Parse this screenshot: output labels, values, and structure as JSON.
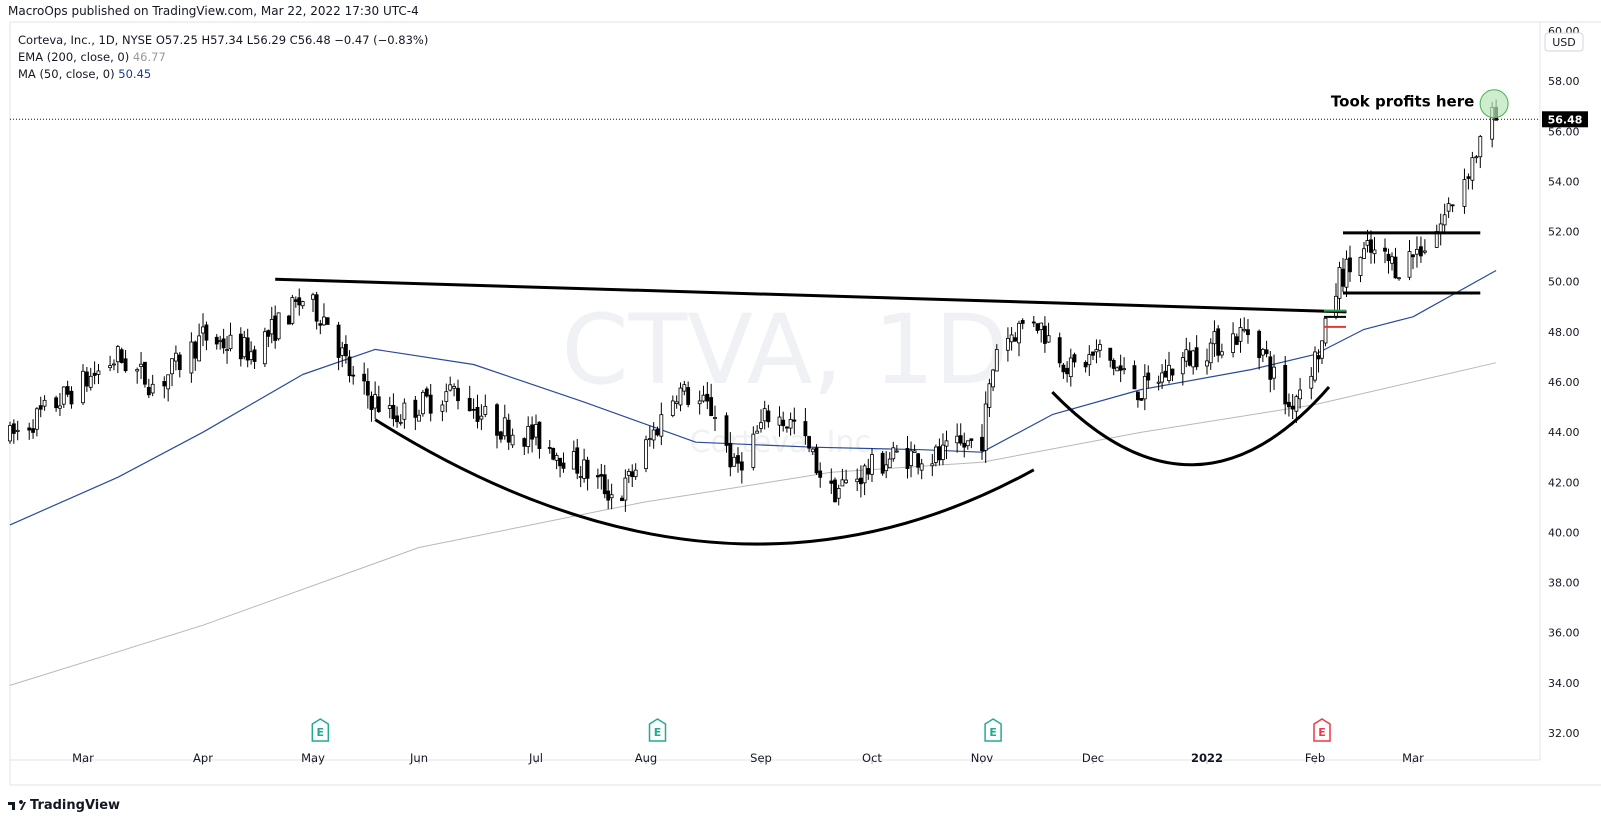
{
  "header": {
    "published": "MacroOps published on TradingView.com, Mar 22, 2022 17:30 UTC-4"
  },
  "legend": {
    "symbol_line": "Corteva, Inc., 1D, NYSE  O57.25  H57.34  L56.29  C56.48  −0.47 (−0.83%)",
    "ema_label": "EMA (200, close, 0)",
    "ema_value": "46.77",
    "ma_label": "MA (50, close, 0)",
    "ma_value": "50.45"
  },
  "watermark": {
    "ticker": "CTVA, 1D",
    "name": "Corteva, Inc."
  },
  "annotation": "Took profits here",
  "currency": "USD",
  "footer": {
    "brand": "TradingView"
  },
  "colors": {
    "up": "#ffffff",
    "down": "#000000",
    "ma50": "#2a4a9a",
    "ema200": "#b8b8b8",
    "earnings": "#22ab94",
    "earnings_next": "#f23645",
    "target_circle": "#b9e6b9"
  },
  "chart_data": {
    "type": "candlestick",
    "title": "Corteva, Inc., 1D, NYSE",
    "ylim": [
      31.5,
      60.2
    ],
    "y_ticks": [
      "32.00",
      "34.00",
      "36.00",
      "38.00",
      "40.00",
      "42.00",
      "44.00",
      "46.00",
      "48.00",
      "50.00",
      "52.00",
      "54.00",
      "56.00",
      "58.00",
      "60.00"
    ],
    "x_ticks": [
      {
        "label": "Mar",
        "date": "2021-03-01"
      },
      {
        "label": "Apr",
        "date": "2021-04-01"
      },
      {
        "label": "May",
        "date": "2021-05-03"
      },
      {
        "label": "Jun",
        "date": "2021-06-01"
      },
      {
        "label": "Jul",
        "date": "2021-07-01"
      },
      {
        "label": "Aug",
        "date": "2021-08-02"
      },
      {
        "label": "Sep",
        "date": "2021-09-01"
      },
      {
        "label": "Oct",
        "date": "2021-10-01"
      },
      {
        "label": "Nov",
        "date": "2021-11-01"
      },
      {
        "label": "Dec",
        "date": "2021-12-01"
      },
      {
        "label": "2022",
        "date": "2022-01-03",
        "bold": true
      },
      {
        "label": "Feb",
        "date": "2022-02-01"
      },
      {
        "label": "Mar",
        "date": "2022-03-01"
      }
    ],
    "last_price": "56.48",
    "price_path": [
      [
        "2021-02-10",
        43.8
      ],
      [
        "2021-02-25",
        45.5
      ],
      [
        "2021-03-10",
        47.0
      ],
      [
        "2021-03-20",
        45.8
      ],
      [
        "2021-04-01",
        47.8
      ],
      [
        "2021-04-15",
        47.2
      ],
      [
        "2021-04-30",
        49.3
      ],
      [
        "2021-05-07",
        48.5
      ],
      [
        "2021-05-14",
        46.0
      ],
      [
        "2021-05-25",
        44.6
      ],
      [
        "2021-06-10",
        45.7
      ],
      [
        "2021-06-20",
        44.3
      ],
      [
        "2021-07-01",
        43.8
      ],
      [
        "2021-07-15",
        42.5
      ],
      [
        "2021-07-25",
        41.3
      ],
      [
        "2021-08-02",
        43.4
      ],
      [
        "2021-08-10",
        45.7
      ],
      [
        "2021-08-20",
        44.8
      ],
      [
        "2021-08-25",
        42.5
      ],
      [
        "2021-09-03",
        44.7
      ],
      [
        "2021-09-10",
        44.3
      ],
      [
        "2021-09-20",
        41.6
      ],
      [
        "2021-09-30",
        42.5
      ],
      [
        "2021-10-08",
        43.1
      ],
      [
        "2021-10-20",
        43.0
      ],
      [
        "2021-11-01",
        43.8
      ],
      [
        "2021-11-05",
        47.5
      ],
      [
        "2021-11-15",
        48.6
      ],
      [
        "2021-11-25",
        46.5
      ],
      [
        "2021-12-03",
        47.2
      ],
      [
        "2021-12-15",
        45.6
      ],
      [
        "2021-12-25",
        46.7
      ],
      [
        "2022-01-05",
        47.5
      ],
      [
        "2022-01-15",
        48.1
      ],
      [
        "2022-01-25",
        45.0
      ],
      [
        "2022-02-03",
        47.5
      ],
      [
        "2022-02-08",
        50.2
      ],
      [
        "2022-02-16",
        51.2
      ],
      [
        "2022-02-25",
        50.6
      ],
      [
        "2022-03-04",
        51.5
      ],
      [
        "2022-03-08",
        52.3
      ],
      [
        "2022-03-14",
        54.2
      ],
      [
        "2022-03-21",
        56.5
      ],
      [
        "2022-03-22",
        56.48
      ]
    ],
    "ma50_path": [
      [
        "2021-02-10",
        40.3
      ],
      [
        "2021-03-10",
        42.2
      ],
      [
        "2021-04-01",
        44.0
      ],
      [
        "2021-04-30",
        46.3
      ],
      [
        "2021-05-20",
        47.3
      ],
      [
        "2021-06-15",
        46.7
      ],
      [
        "2021-07-15",
        45.2
      ],
      [
        "2021-08-15",
        43.6
      ],
      [
        "2021-09-15",
        43.4
      ],
      [
        "2021-10-15",
        43.3
      ],
      [
        "2021-11-01",
        43.2
      ],
      [
        "2021-11-20",
        44.7
      ],
      [
        "2021-12-15",
        45.7
      ],
      [
        "2022-01-15",
        46.5
      ],
      [
        "2022-02-01",
        47.1
      ],
      [
        "2022-02-15",
        48.1
      ],
      [
        "2022-03-01",
        48.6
      ],
      [
        "2022-03-22",
        50.45
      ]
    ],
    "ema200_path": [
      [
        "2021-02-10",
        33.9
      ],
      [
        "2021-04-01",
        36.3
      ],
      [
        "2021-06-01",
        39.4
      ],
      [
        "2021-08-01",
        41.2
      ],
      [
        "2021-09-20",
        42.4
      ],
      [
        "2021-11-01",
        42.8
      ],
      [
        "2021-12-15",
        44.0
      ],
      [
        "2022-02-01",
        45.1
      ],
      [
        "2022-03-22",
        46.77
      ]
    ],
    "earnings_dates": [
      {
        "date": "2021-05-05",
        "status": "reported"
      },
      {
        "date": "2021-08-05",
        "status": "reported"
      },
      {
        "date": "2021-11-04",
        "status": "reported"
      },
      {
        "date": "2022-02-03",
        "status": "reported_red"
      }
    ],
    "drawings": [
      {
        "type": "trendline",
        "points": [
          [
            "2021-04-22",
            50.1
          ],
          [
            "2022-02-10",
            48.8
          ]
        ]
      },
      {
        "type": "arc",
        "points": [
          [
            "2021-05-20",
            44.5
          ],
          [
            "2021-08-20",
            39.6
          ],
          [
            "2021-11-15",
            42.5
          ]
        ]
      },
      {
        "type": "arc",
        "points": [
          [
            "2021-11-20",
            45.6
          ],
          [
            "2021-12-30",
            42.7
          ],
          [
            "2022-02-05",
            45.8
          ]
        ]
      },
      {
        "type": "hline",
        "points": [
          [
            "2022-02-09",
            51.95
          ],
          [
            "2022-03-18",
            51.95
          ]
        ]
      },
      {
        "type": "hline",
        "points": [
          [
            "2022-02-09",
            49.55
          ],
          [
            "2022-03-18",
            49.55
          ]
        ]
      }
    ]
  }
}
